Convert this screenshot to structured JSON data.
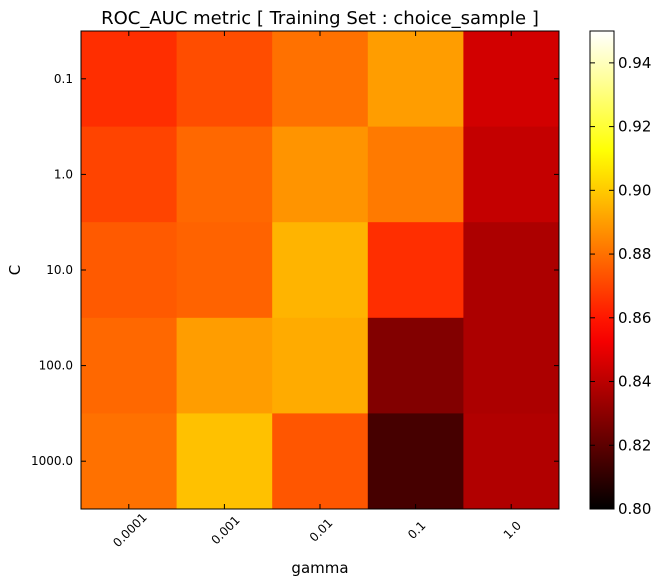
{
  "chart_data": {
    "type": "heatmap",
    "title": "ROC_AUC metric  [ Training Set : choice_sample ]",
    "xlabel": "gamma",
    "ylabel": "C",
    "x_categories": [
      "0.0001",
      "0.001",
      "0.01",
      "0.1",
      "1.0"
    ],
    "y_categories": [
      "0.1",
      "1.0",
      "10.0",
      "100.0",
      "1000.0"
    ],
    "values": [
      [
        0.865,
        0.872,
        0.88,
        0.89,
        0.845
      ],
      [
        0.87,
        0.878,
        0.888,
        0.882,
        0.842
      ],
      [
        0.875,
        0.877,
        0.895,
        0.865,
        0.837
      ],
      [
        0.878,
        0.89,
        0.893,
        0.828,
        0.837
      ],
      [
        0.88,
        0.898,
        0.874,
        0.815,
        0.838
      ]
    ],
    "colorbar": {
      "colormap": "hot",
      "range": [
        0.8,
        0.95
      ],
      "ticks": [
        "0.80",
        "0.82",
        "0.84",
        "0.86",
        "0.88",
        "0.90",
        "0.92",
        "0.94"
      ]
    },
    "grid": false
  }
}
